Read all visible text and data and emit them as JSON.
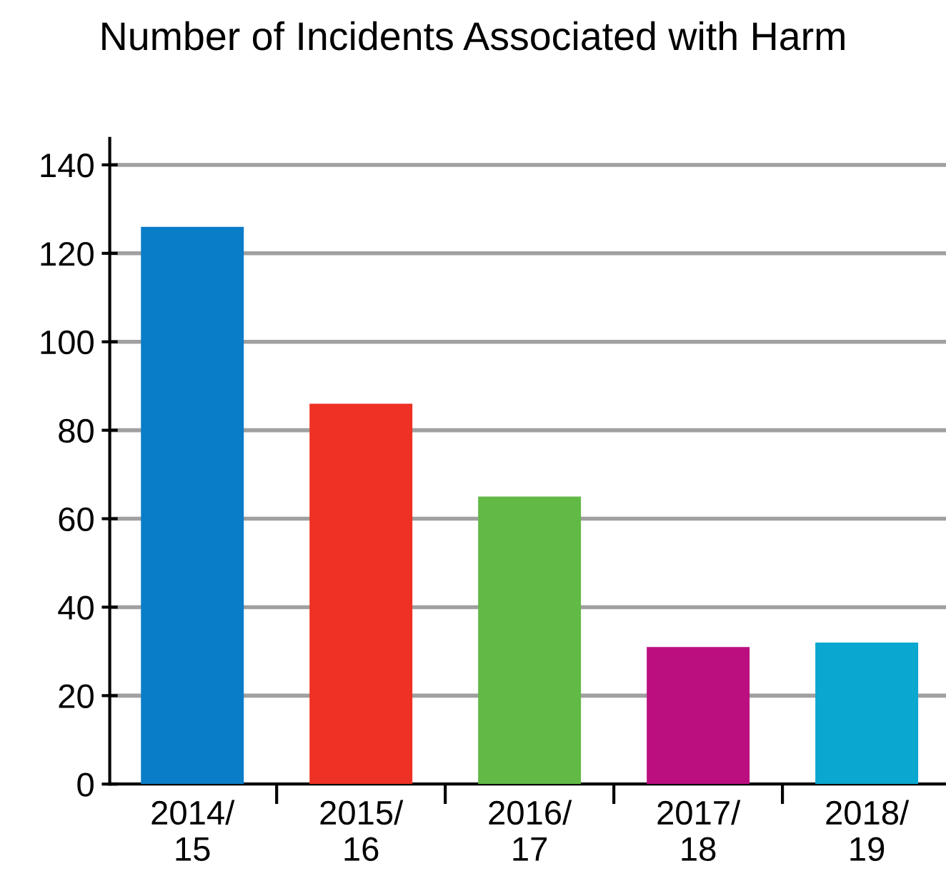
{
  "chart_data": {
    "type": "bar",
    "title": "Number of Incidents Associated with Harm",
    "categories": [
      "2014/\n15",
      "2015/\n16",
      "2016/\n17",
      "2017/\n18",
      "2018/\n19"
    ],
    "values": [
      126,
      86,
      65,
      31,
      32
    ],
    "colors": [
      "#0a7dc8",
      "#ee3124",
      "#62b946",
      "#bb0f80",
      "#0aa7d0"
    ],
    "ylim": [
      0,
      146
    ],
    "yticks": [
      0,
      20,
      40,
      60,
      80,
      100,
      120,
      140
    ],
    "grid": "y",
    "legend": false
  }
}
